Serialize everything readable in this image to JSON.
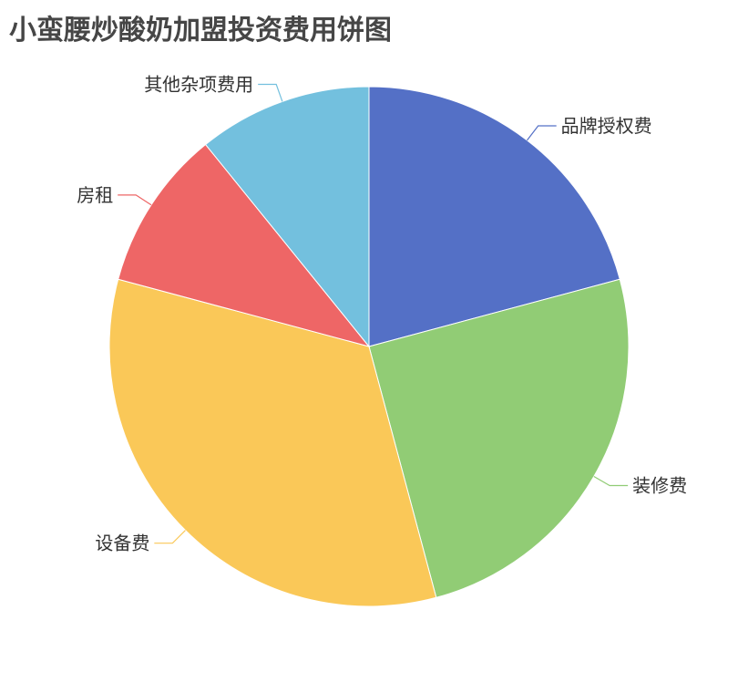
{
  "chart_data": {
    "type": "pie",
    "title": "小蛮腰炒酸奶加盟投资费用饼图",
    "categories": [
      "品牌授权费",
      "装修费",
      "设备费",
      "房租",
      "其他杂项费用"
    ],
    "values": [
      50000,
      60000,
      80000,
      24000,
      26000
    ],
    "colors": [
      "#5470c6",
      "#91cc75",
      "#fac858",
      "#ee6666",
      "#73c0de"
    ],
    "start_angle": "top, clockwise",
    "legend": "none"
  }
}
